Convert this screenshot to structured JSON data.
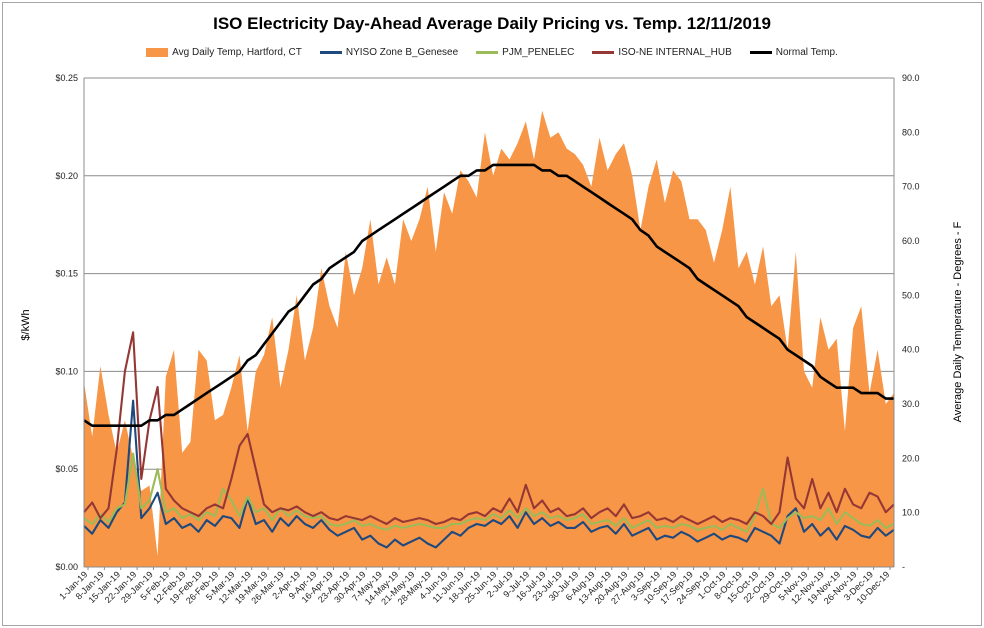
{
  "chart_data": {
    "type": "line",
    "title": "ISO Electricity Day-Ahead Average Daily Pricing vs. Temp. 12/11/2019",
    "ylabel_left": "$/kWh",
    "ylabel_right": "Average Daily Temperature - Degrees - F",
    "ylim_left": [
      0,
      0.25
    ],
    "ylim_right": [
      0,
      90
    ],
    "y_ticks_left": [
      "$0.00",
      "$0.05",
      "$0.10",
      "$0.15",
      "$0.20",
      "$0.25"
    ],
    "y_ticks_right": [
      "-",
      "10.0",
      "20.0",
      "30.0",
      "40.0",
      "50.0",
      "60.0",
      "70.0",
      "80.0",
      "90.0"
    ],
    "x_tick_labels": [
      "1-Jan-19",
      "8-Jan-19",
      "15-Jan-19",
      "22-Jan-19",
      "29-Jan-19",
      "5-Feb-19",
      "12-Feb-19",
      "19-Feb-19",
      "26-Feb-19",
      "5-Mar-19",
      "12-Mar-19",
      "19-Mar-19",
      "26-Mar-19",
      "2-Apr-19",
      "9-Apr-19",
      "16-Apr-19",
      "23-Apr-19",
      "30-Apr-19",
      "7-May-19",
      "14-May-19",
      "21-May-19",
      "28-May-19",
      "4-Jun-19",
      "11-Jun-19",
      "18-Jun-19",
      "25-Jun-19",
      "2-Jul-19",
      "9-Jul-19",
      "16-Jul-19",
      "23-Jul-19",
      "30-Jul-19",
      "6-Aug-19",
      "13-Aug-19",
      "20-Aug-19",
      "27-Aug-19",
      "3-Sep-19",
      "10-Sep-19",
      "17-Sep-19",
      "24-Sep-19",
      "1-Oct-19",
      "8-Oct-19",
      "15-Oct-19",
      "22-Oct-19",
      "29-Oct-19",
      "5-Nov-19",
      "12-Nov-19",
      "19-Nov-19",
      "26-Nov-19",
      "3-Dec-19",
      "10-Dec-19"
    ],
    "legend_position": "top",
    "grid": "horizontal",
    "series": [
      {
        "name": "Avg Daily Temp, Hartford, CT",
        "axis": "right",
        "kind": "area",
        "color": "#f79646",
        "values": [
          34,
          24,
          37,
          28,
          21,
          27,
          20,
          14,
          15,
          2,
          35,
          40,
          21,
          23,
          40,
          38,
          27,
          28,
          33,
          39,
          25,
          36,
          39,
          46,
          33,
          40,
          50,
          38,
          44,
          55,
          48,
          44,
          58,
          50,
          55,
          64,
          52,
          57,
          52,
          64,
          60,
          64,
          70,
          58,
          69,
          65,
          73,
          71,
          68,
          80,
          72,
          77,
          75,
          78,
          82,
          75,
          84,
          79,
          80,
          77,
          76,
          74,
          70,
          79,
          73,
          76,
          78,
          72,
          62,
          70,
          75,
          67,
          73,
          71,
          64,
          64,
          62,
          56,
          62,
          70,
          55,
          58,
          52,
          59,
          48,
          50,
          40,
          58,
          36,
          33,
          46,
          40,
          42,
          25,
          44,
          48,
          32,
          40,
          30,
          32
        ]
      },
      {
        "name": "NYISO Zone B_Genesee",
        "axis": "left",
        "kind": "line",
        "color": "#1f497d",
        "values": [
          0.021,
          0.017,
          0.024,
          0.02,
          0.028,
          0.033,
          0.085,
          0.025,
          0.03,
          0.038,
          0.022,
          0.025,
          0.02,
          0.022,
          0.018,
          0.024,
          0.021,
          0.026,
          0.025,
          0.02,
          0.035,
          0.022,
          0.024,
          0.018,
          0.025,
          0.021,
          0.026,
          0.022,
          0.02,
          0.024,
          0.019,
          0.016,
          0.018,
          0.02,
          0.014,
          0.016,
          0.012,
          0.01,
          0.014,
          0.011,
          0.013,
          0.015,
          0.012,
          0.01,
          0.014,
          0.018,
          0.016,
          0.02,
          0.022,
          0.021,
          0.024,
          0.022,
          0.026,
          0.02,
          0.028,
          0.022,
          0.025,
          0.021,
          0.023,
          0.02,
          0.02,
          0.023,
          0.018,
          0.02,
          0.021,
          0.017,
          0.022,
          0.016,
          0.018,
          0.02,
          0.014,
          0.016,
          0.015,
          0.018,
          0.016,
          0.013,
          0.015,
          0.017,
          0.014,
          0.016,
          0.015,
          0.013,
          0.02,
          0.018,
          0.016,
          0.012,
          0.026,
          0.03,
          0.018,
          0.022,
          0.016,
          0.02,
          0.014,
          0.021,
          0.019,
          0.016,
          0.015,
          0.02,
          0.016,
          0.019
        ]
      },
      {
        "name": "PJM_PENELEC",
        "axis": "left",
        "kind": "line",
        "color": "#9bbb59",
        "values": [
          0.025,
          0.022,
          0.027,
          0.023,
          0.03,
          0.032,
          0.058,
          0.03,
          0.034,
          0.05,
          0.028,
          0.03,
          0.025,
          0.027,
          0.024,
          0.028,
          0.026,
          0.04,
          0.034,
          0.026,
          0.036,
          0.028,
          0.03,
          0.024,
          0.03,
          0.026,
          0.029,
          0.026,
          0.025,
          0.026,
          0.022,
          0.021,
          0.022,
          0.024,
          0.021,
          0.022,
          0.02,
          0.019,
          0.021,
          0.02,
          0.021,
          0.022,
          0.021,
          0.02,
          0.02,
          0.022,
          0.022,
          0.024,
          0.025,
          0.024,
          0.027,
          0.025,
          0.029,
          0.025,
          0.03,
          0.026,
          0.028,
          0.025,
          0.026,
          0.024,
          0.025,
          0.027,
          0.022,
          0.023,
          0.024,
          0.021,
          0.025,
          0.02,
          0.022,
          0.024,
          0.02,
          0.021,
          0.02,
          0.022,
          0.021,
          0.019,
          0.02,
          0.021,
          0.019,
          0.022,
          0.02,
          0.018,
          0.026,
          0.04,
          0.022,
          0.02,
          0.025,
          0.028,
          0.025,
          0.026,
          0.024,
          0.03,
          0.022,
          0.028,
          0.025,
          0.022,
          0.021,
          0.024,
          0.02,
          0.022
        ]
      },
      {
        "name": "ISO-NE INTERNAL_HUB",
        "axis": "left",
        "kind": "line",
        "color": "#953735",
        "values": [
          0.028,
          0.033,
          0.025,
          0.03,
          0.06,
          0.1,
          0.12,
          0.045,
          0.075,
          0.092,
          0.04,
          0.034,
          0.03,
          0.028,
          0.026,
          0.03,
          0.032,
          0.03,
          0.045,
          0.062,
          0.068,
          0.05,
          0.032,
          0.028,
          0.03,
          0.029,
          0.031,
          0.028,
          0.026,
          0.028,
          0.025,
          0.024,
          0.026,
          0.025,
          0.024,
          0.026,
          0.024,
          0.022,
          0.025,
          0.023,
          0.024,
          0.025,
          0.024,
          0.022,
          0.023,
          0.025,
          0.024,
          0.027,
          0.028,
          0.026,
          0.03,
          0.028,
          0.035,
          0.028,
          0.042,
          0.03,
          0.034,
          0.028,
          0.03,
          0.026,
          0.027,
          0.03,
          0.025,
          0.028,
          0.03,
          0.026,
          0.032,
          0.025,
          0.026,
          0.028,
          0.024,
          0.025,
          0.023,
          0.026,
          0.024,
          0.022,
          0.024,
          0.026,
          0.023,
          0.025,
          0.024,
          0.022,
          0.028,
          0.026,
          0.022,
          0.028,
          0.056,
          0.035,
          0.03,
          0.045,
          0.03,
          0.038,
          0.028,
          0.04,
          0.032,
          0.03,
          0.038,
          0.036,
          0.028,
          0.032
        ]
      },
      {
        "name": "Normal Temp.",
        "axis": "right",
        "kind": "line",
        "color": "#000000",
        "values": [
          27,
          26,
          26,
          26,
          26,
          26,
          26,
          26,
          27,
          27,
          28,
          28,
          29,
          30,
          31,
          32,
          33,
          34,
          35,
          36,
          38,
          39,
          41,
          43,
          45,
          47,
          48,
          50,
          52,
          53,
          55,
          56,
          57,
          58,
          60,
          61,
          62,
          63,
          64,
          65,
          66,
          67,
          68,
          69,
          70,
          71,
          72,
          72,
          73,
          73,
          74,
          74,
          74,
          74,
          74,
          74,
          73,
          73,
          72,
          72,
          71,
          70,
          69,
          68,
          67,
          66,
          65,
          64,
          62,
          61,
          59,
          58,
          57,
          56,
          55,
          53,
          52,
          51,
          50,
          49,
          48,
          46,
          45,
          44,
          43,
          42,
          40,
          39,
          38,
          37,
          35,
          34,
          33,
          33,
          33,
          32,
          32,
          32,
          31,
          31
        ]
      }
    ]
  }
}
